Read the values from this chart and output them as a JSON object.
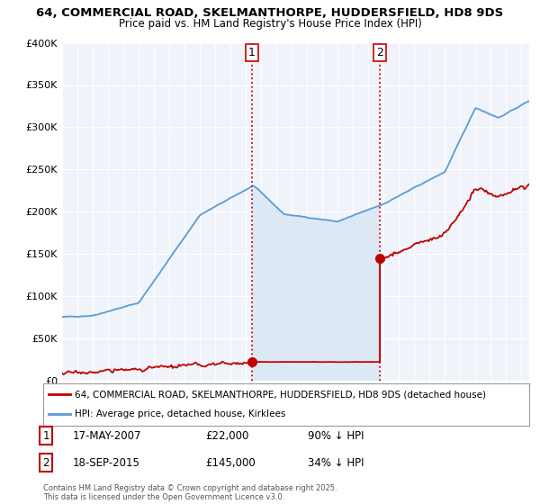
{
  "title": "64, COMMERCIAL ROAD, SKELMANTHORPE, HUDDERSFIELD, HD8 9DS",
  "subtitle": "Price paid vs. HM Land Registry's House Price Index (HPI)",
  "legend_line1": "64, COMMERCIAL ROAD, SKELMANTHORPE, HUDDERSFIELD, HD8 9DS (detached house)",
  "legend_line2": "HPI: Average price, detached house, Kirklees",
  "footer": "Contains HM Land Registry data © Crown copyright and database right 2025.\nThis data is licensed under the Open Government Licence v3.0.",
  "transaction1_date": "17-MAY-2007",
  "transaction1_price": "£22,000",
  "transaction1_hpi": "90% ↓ HPI",
  "transaction2_date": "18-SEP-2015",
  "transaction2_price": "£145,000",
  "transaction2_hpi": "34% ↓ HPI",
  "ylim": [
    0,
    400000
  ],
  "xlim_start": 1995.0,
  "xlim_end": 2025.5,
  "sale1_year": 2007.38,
  "sale1_price": 22000,
  "sale2_year": 2015.72,
  "sale2_price": 145000,
  "hpi_color": "#5b9bd5",
  "fill_color": "#dce9f5",
  "sale_color": "#c00000",
  "vline_color": "#cc0000",
  "background_color": "#ffffff",
  "plot_bg_color": "#f0f4fa"
}
